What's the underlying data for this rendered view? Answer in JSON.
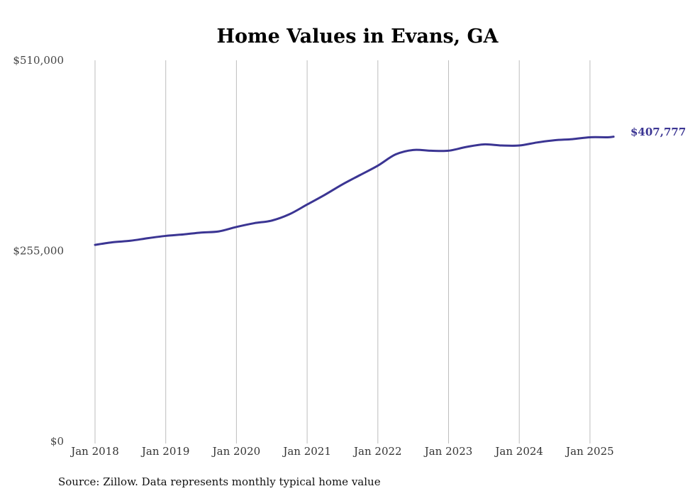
{
  "chart_data": {
    "type": "line",
    "title": "Home Values in Evans, GA",
    "source": "Source: Zillow. Data represents monthly typical home value",
    "xlabel": "",
    "ylabel": "",
    "ylim": [
      0,
      510000
    ],
    "yticks": [
      0,
      255000,
      510000
    ],
    "ytick_labels": [
      "$0",
      "$255,000",
      "$510,000"
    ],
    "xticks": [
      "2018-01",
      "2019-01",
      "2020-01",
      "2021-01",
      "2022-01",
      "2023-01",
      "2024-01",
      "2025-01"
    ],
    "xtick_labels": [
      "Jan 2018",
      "Jan 2019",
      "Jan 2020",
      "Jan 2021",
      "Jan 2022",
      "Jan 2023",
      "Jan 2024",
      "Jan 2025"
    ],
    "grid": "vertical",
    "line_color": "#3b3593",
    "end_label": "$407,777",
    "series": [
      {
        "x": [
          "2018-01",
          "2018-04",
          "2018-07",
          "2018-10",
          "2019-01",
          "2019-04",
          "2019-07",
          "2019-10",
          "2020-01",
          "2020-04",
          "2020-07",
          "2020-10",
          "2021-01",
          "2021-04",
          "2021-07",
          "2021-10",
          "2022-01",
          "2022-04",
          "2022-07",
          "2022-10",
          "2023-01",
          "2023-04",
          "2023-07",
          "2023-10",
          "2024-01",
          "2024-04",
          "2024-07",
          "2024-10",
          "2025-01",
          "2025-04",
          "2025-05"
        ],
        "values": [
          263000,
          266500,
          268500,
          272000,
          275000,
          277000,
          279500,
          281000,
          287000,
          292000,
          295500,
          304000,
          317000,
          330000,
          344000,
          356500,
          369000,
          384000,
          390000,
          389000,
          389000,
          394000,
          397500,
          396000,
          396000,
          400000,
          403000,
          404500,
          407000,
          407000,
          407777
        ]
      }
    ]
  }
}
